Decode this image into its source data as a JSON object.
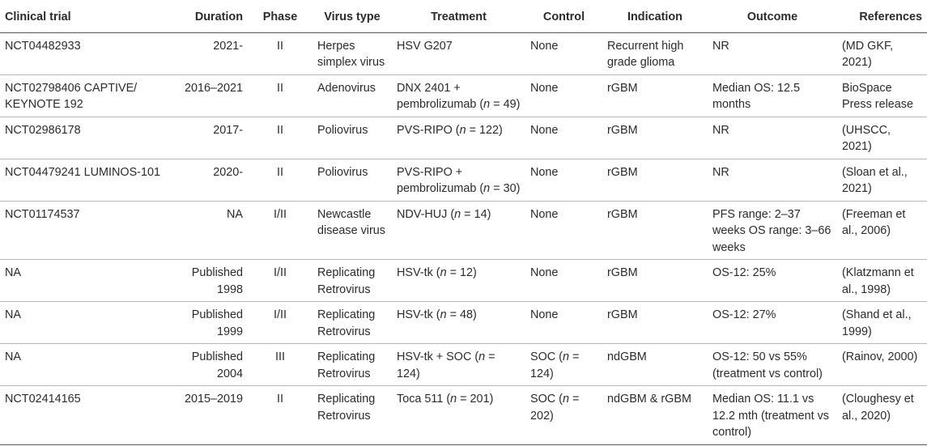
{
  "headers": {
    "trial": "Clinical trial",
    "duration": "Duration",
    "phase": "Phase",
    "virus": "Virus type",
    "treatment": "Treatment",
    "control": "Control",
    "indication": "Indication",
    "outcome": "Outcome",
    "references": "References"
  },
  "rows": [
    {
      "trial": "NCT04482933",
      "duration": "2021-",
      "phase": "II",
      "virus": "Herpes simplex virus",
      "treatment": "HSV G207",
      "control": "None",
      "indication": "Recurrent high grade glioma",
      "outcome": "NR",
      "references": "(MD GKF, 2021)"
    },
    {
      "trial": "NCT02798406 CAPTIVE/ KEYNOTE 192",
      "duration": "2016–2021",
      "phase": "II",
      "virus": "Adenovirus",
      "treatment": "DNX 2401 + pembrolizumab (n = 49)",
      "control": "None",
      "indication": "rGBM",
      "outcome": "Median OS: 12.5 months",
      "references": "BioSpace Press release"
    },
    {
      "trial": "NCT02986178",
      "duration": "2017-",
      "phase": "II",
      "virus": "Poliovirus",
      "treatment": "PVS-RIPO (n = 122)",
      "control": "None",
      "indication": "rGBM",
      "outcome": "NR",
      "references": "(UHSCC, 2021)"
    },
    {
      "trial": "NCT04479241 LUMINOS-101",
      "duration": "2020-",
      "phase": "II",
      "virus": "Poliovirus",
      "treatment": "PVS-RIPO + pembrolizumab (n = 30)",
      "control": "None",
      "indication": "rGBM",
      "outcome": "NR",
      "references": "(Sloan et al., 2021)"
    },
    {
      "trial": "NCT01174537",
      "duration": "NA",
      "phase": "I/II",
      "virus": "Newcastle disease virus",
      "treatment": "NDV-HUJ (n = 14)",
      "control": "None",
      "indication": "rGBM",
      "outcome": "PFS range: 2–37 weeks OS range: 3–66 weeks",
      "references": "(Freeman et al., 2006)"
    },
    {
      "trial": "NA",
      "duration": "Published 1998",
      "phase": "I/II",
      "virus": "Replicating Retrovirus",
      "treatment": "HSV-tk (n = 12)",
      "control": "None",
      "indication": "rGBM",
      "outcome": "OS-12: 25%",
      "references": "(Klatzmann et al., 1998)"
    },
    {
      "trial": "NA",
      "duration": "Published 1999",
      "phase": "I/II",
      "virus": "Replicating Retrovirus",
      "treatment": "HSV-tk (n = 48)",
      "control": "None",
      "indication": "rGBM",
      "outcome": "OS-12: 27%",
      "references": "(Shand et al., 1999)"
    },
    {
      "trial": "NA",
      "duration": "Published 2004",
      "phase": "III",
      "virus": "Replicating Retrovirus",
      "treatment": "HSV-tk + SOC (n = 124)",
      "control": "SOC (n = 124)",
      "indication": "ndGBM",
      "outcome": "OS-12: 50 vs 55% (treatment vs control)",
      "references": "(Rainov, 2000)"
    },
    {
      "trial": "NCT02414165",
      "duration": "2015–2019",
      "phase": "II",
      "virus": "Replicating Retrovirus",
      "treatment": "Toca 511 (n = 201)",
      "control": "SOC (n = 202)",
      "indication": "ndGBM & rGBM",
      "outcome": "Median OS: 11.1 vs 12.2 mth (treatment vs control)",
      "references": "(Cloughesy et al., 2020)"
    }
  ]
}
